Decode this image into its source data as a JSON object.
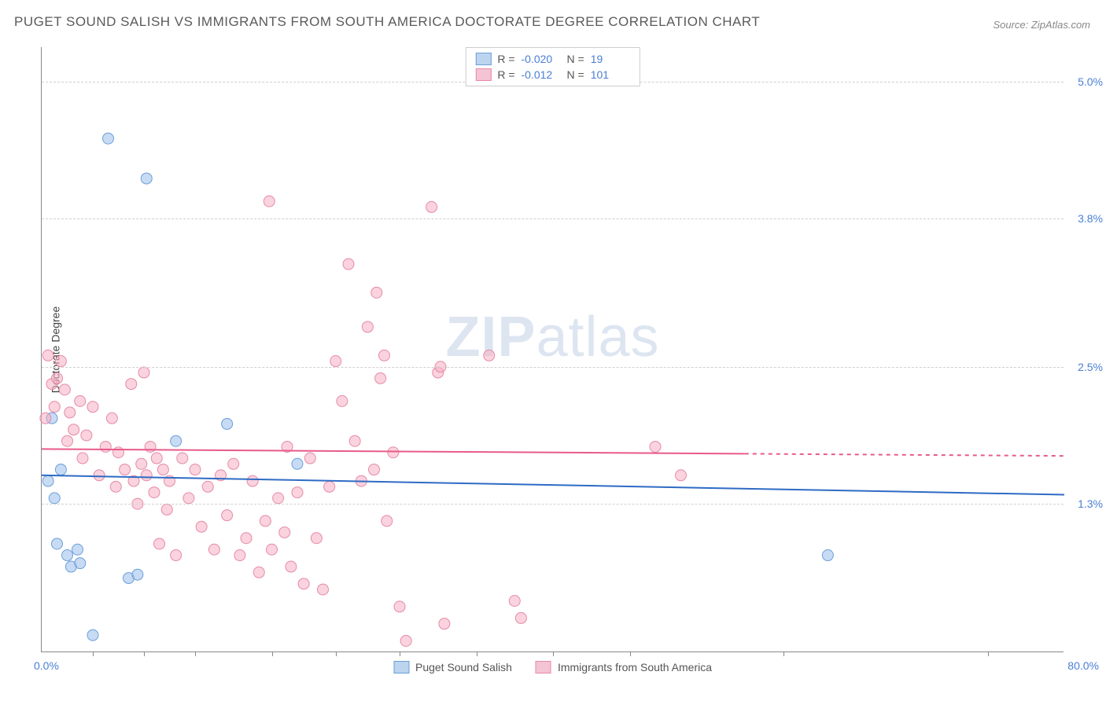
{
  "title": "PUGET SOUND SALISH VS IMMIGRANTS FROM SOUTH AMERICA DOCTORATE DEGREE CORRELATION CHART",
  "source": "Source: ZipAtlas.com",
  "watermark": {
    "prefix": "ZIP",
    "suffix": "atlas"
  },
  "chart": {
    "type": "scatter",
    "background_color": "#ffffff",
    "grid_color": "#d0d0d0",
    "axis_color": "#888888",
    "tick_label_color": "#4a7fd4",
    "x_axis": {
      "min": 0,
      "max": 80,
      "label_min": "0.0%",
      "label_max": "80.0%",
      "tick_positions": [
        4,
        8,
        12,
        18,
        23,
        28,
        34,
        40,
        46,
        58,
        74
      ]
    },
    "y_axis": {
      "title": "Doctorate Degree",
      "min": 0,
      "max": 5.3,
      "ticks": [
        {
          "value": 1.3,
          "label": "1.3%"
        },
        {
          "value": 2.5,
          "label": "2.5%"
        },
        {
          "value": 3.8,
          "label": "3.8%"
        },
        {
          "value": 5.0,
          "label": "5.0%"
        }
      ]
    },
    "series": [
      {
        "id": "salish",
        "name": "Puget Sound Salish",
        "color_fill": "rgba(155, 190, 235, 0.55)",
        "color_stroke": "#6a9fd8",
        "swatch_fill": "#bcd4ef",
        "swatch_border": "#6a9fd8",
        "marker_radius": 7,
        "R": "-0.020",
        "N": "19",
        "trend": {
          "y_start": 1.55,
          "y_end": 1.38,
          "color": "#2e6bc4",
          "width": 2
        },
        "points": [
          [
            0.5,
            1.5
          ],
          [
            0.8,
            2.05
          ],
          [
            1.0,
            1.35
          ],
          [
            1.2,
            0.95
          ],
          [
            1.5,
            1.6
          ],
          [
            2.0,
            0.85
          ],
          [
            2.3,
            0.75
          ],
          [
            2.8,
            0.9
          ],
          [
            3.0,
            0.78
          ],
          [
            4.0,
            0.15
          ],
          [
            5.2,
            4.5
          ],
          [
            6.8,
            0.65
          ],
          [
            7.5,
            0.68
          ],
          [
            8.2,
            4.15
          ],
          [
            10.5,
            1.85
          ],
          [
            14.5,
            2.0
          ],
          [
            20.0,
            1.65
          ],
          [
            61.5,
            0.85
          ]
        ]
      },
      {
        "id": "south_america",
        "name": "Immigrants from South America",
        "color_fill": "rgba(245, 175, 195, 0.55)",
        "color_stroke": "#e68aa8",
        "swatch_fill": "#f4c4d4",
        "swatch_border": "#e68aa8",
        "marker_radius": 7,
        "R": "-0.012",
        "N": "101",
        "trend": {
          "y_start": 1.78,
          "y_end": 1.72,
          "color": "#e85a8a",
          "width": 2,
          "dash_after_x": 55
        },
        "points": [
          [
            0.3,
            2.05
          ],
          [
            0.5,
            2.6
          ],
          [
            0.8,
            2.35
          ],
          [
            1.0,
            2.15
          ],
          [
            1.2,
            2.4
          ],
          [
            1.5,
            2.55
          ],
          [
            1.8,
            2.3
          ],
          [
            2.0,
            1.85
          ],
          [
            2.2,
            2.1
          ],
          [
            2.5,
            1.95
          ],
          [
            3.0,
            2.2
          ],
          [
            3.2,
            1.7
          ],
          [
            3.5,
            1.9
          ],
          [
            4.0,
            2.15
          ],
          [
            4.5,
            1.55
          ],
          [
            5.0,
            1.8
          ],
          [
            5.5,
            2.05
          ],
          [
            5.8,
            1.45
          ],
          [
            6.0,
            1.75
          ],
          [
            6.5,
            1.6
          ],
          [
            7.0,
            2.35
          ],
          [
            7.2,
            1.5
          ],
          [
            7.5,
            1.3
          ],
          [
            7.8,
            1.65
          ],
          [
            8.0,
            2.45
          ],
          [
            8.2,
            1.55
          ],
          [
            8.5,
            1.8
          ],
          [
            8.8,
            1.4
          ],
          [
            9.0,
            1.7
          ],
          [
            9.2,
            0.95
          ],
          [
            9.5,
            1.6
          ],
          [
            9.8,
            1.25
          ],
          [
            10.0,
            1.5
          ],
          [
            10.5,
            0.85
          ],
          [
            11.0,
            1.7
          ],
          [
            11.5,
            1.35
          ],
          [
            12.0,
            1.6
          ],
          [
            12.5,
            1.1
          ],
          [
            13.0,
            1.45
          ],
          [
            13.5,
            0.9
          ],
          [
            14.0,
            1.55
          ],
          [
            14.5,
            1.2
          ],
          [
            15.0,
            1.65
          ],
          [
            15.5,
            0.85
          ],
          [
            16.0,
            1.0
          ],
          [
            16.5,
            1.5
          ],
          [
            17.0,
            0.7
          ],
          [
            17.5,
            1.15
          ],
          [
            17.8,
            3.95
          ],
          [
            18.0,
            0.9
          ],
          [
            18.5,
            1.35
          ],
          [
            19.0,
            1.05
          ],
          [
            19.2,
            1.8
          ],
          [
            19.5,
            0.75
          ],
          [
            20.0,
            1.4
          ],
          [
            20.5,
            0.6
          ],
          [
            21.0,
            1.7
          ],
          [
            21.5,
            1.0
          ],
          [
            22.0,
            0.55
          ],
          [
            22.5,
            1.45
          ],
          [
            23.0,
            2.55
          ],
          [
            23.5,
            2.2
          ],
          [
            24.0,
            3.4
          ],
          [
            24.5,
            1.85
          ],
          [
            25.0,
            1.5
          ],
          [
            25.5,
            2.85
          ],
          [
            26.0,
            1.6
          ],
          [
            26.2,
            3.15
          ],
          [
            26.5,
            2.4
          ],
          [
            26.8,
            2.6
          ],
          [
            27.0,
            1.15
          ],
          [
            27.5,
            1.75
          ],
          [
            28.0,
            0.4
          ],
          [
            28.5,
            0.1
          ],
          [
            30.5,
            3.9
          ],
          [
            31.0,
            2.45
          ],
          [
            31.2,
            2.5
          ],
          [
            31.5,
            0.25
          ],
          [
            35.0,
            2.6
          ],
          [
            37.0,
            0.45
          ],
          [
            37.5,
            0.3
          ],
          [
            48.0,
            1.8
          ],
          [
            50.0,
            1.55
          ]
        ]
      }
    ],
    "legend_top_labels": {
      "R": "R =",
      "N": "N ="
    },
    "title_fontsize": 17,
    "label_fontsize": 14
  }
}
